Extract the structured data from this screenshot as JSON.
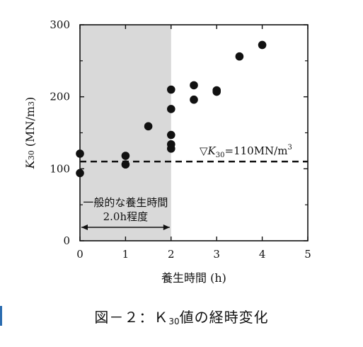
{
  "chart_data": {
    "type": "scatter",
    "title": "",
    "xlabel": "養生時間 (h)",
    "ylabel": "K30 (MN/m3)",
    "ylabel_parts": {
      "var": "K",
      "sub": "30",
      "unit": " (MN/m",
      "sup": "3",
      "close": ")"
    },
    "xlim": [
      0,
      5
    ],
    "ylim": [
      0,
      300
    ],
    "x_ticks": [
      0,
      1,
      2,
      3,
      4,
      5
    ],
    "y_ticks": [
      0,
      100,
      200,
      300
    ],
    "grid": false,
    "shaded_region": {
      "x": [
        0,
        2
      ],
      "label_line1": "一般的な養生時間",
      "label_line2": "2.0h程度"
    },
    "threshold": {
      "y": 110,
      "label_parts": {
        "sym": "▽",
        "var": "K",
        "sub": "30",
        "eq": "=110MN/m",
        "sup": "3"
      }
    },
    "points": [
      {
        "x": 0,
        "y": 121
      },
      {
        "x": 0,
        "y": 94
      },
      {
        "x": 1,
        "y": 118
      },
      {
        "x": 1,
        "y": 106
      },
      {
        "x": 1.5,
        "y": 159
      },
      {
        "x": 2,
        "y": 210
      },
      {
        "x": 2,
        "y": 183
      },
      {
        "x": 2,
        "y": 147
      },
      {
        "x": 2,
        "y": 134
      },
      {
        "x": 2,
        "y": 128
      },
      {
        "x": 2.5,
        "y": 216
      },
      {
        "x": 2.5,
        "y": 196
      },
      {
        "x": 3,
        "y": 209
      },
      {
        "x": 3,
        "y": 207
      },
      {
        "x": 3.5,
        "y": 256
      },
      {
        "x": 4,
        "y": 272
      }
    ]
  },
  "caption": {
    "prefix": "図－２：Ｋ",
    "sub": "30",
    "suffix": "値の経時変化"
  },
  "colors": {
    "shade": "#d9d9d9",
    "point": "#111111",
    "accent_bar": "#2b6cb0"
  }
}
